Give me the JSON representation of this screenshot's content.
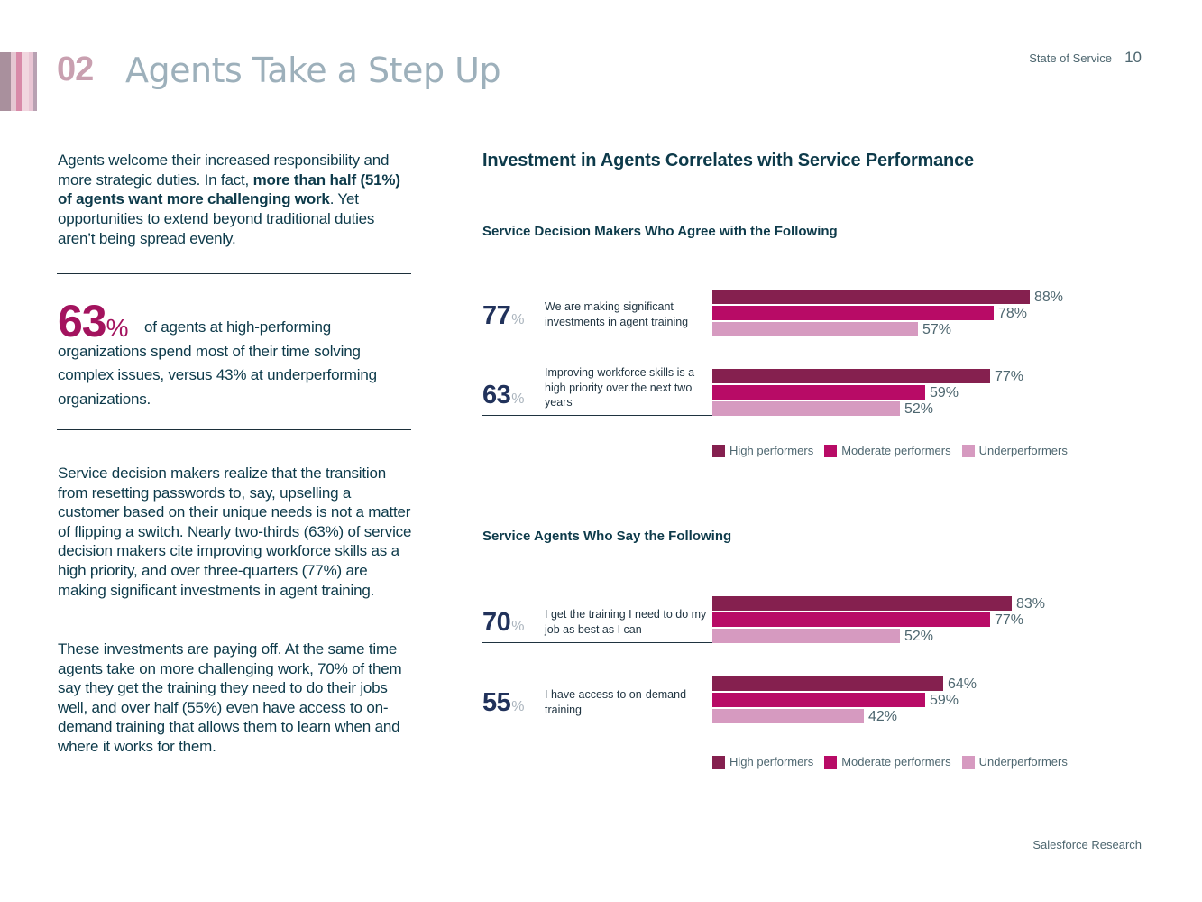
{
  "header": {
    "section_number": "02",
    "section_title": "Agents Take a Step Up",
    "running_head": "State of Service",
    "page_number": "10",
    "stripe_colors": [
      "#a9909d",
      "#e5c7d2",
      "#d88aa8",
      "#f1d6df",
      "#b8a1b2"
    ]
  },
  "left": {
    "intro_pre": "Agents welcome their increased responsibility and more strategic duties. In fact, ",
    "intro_bold": "more than half (51%) of agents want more challenging work",
    "intro_post": ". Yet opportunities to extend beyond traditional duties aren’t being spread evenly.",
    "stat_value": "63",
    "stat_pct": "%",
    "stat_text": "of agents at high-performing organizations spend most of their time solving complex issues, versus 43% at underperforming organizations.",
    "paragraph1": "Service decision makers realize that the transition from resetting passwords to, say, upselling a customer based on their unique needs is not a matter of flipping a switch. Nearly two-thirds (63%) of service decision makers cite improving workforce skills as a high priority, and over three-quarters (77%) are making significant investments in agent training.",
    "paragraph2": "These investments are paying off. At the same time agents take on more challenging work, 70% of them say they get the training they need to do their jobs well, and over half (55%) even have access to on-demand training that allows them to learn when and where it works for them."
  },
  "chart_data": [
    {
      "type": "bar",
      "orientation": "horizontal",
      "title": "Investment in Agents Correlates with Service Performance",
      "subtitle": "Service Decision Makers Who Agree with the Following",
      "categories": [
        "We are making significant investments in agent training",
        "Improving workforce skills is a high priority over the next two years"
      ],
      "overall": [
        "77",
        "63"
      ],
      "unit": "%",
      "series": [
        {
          "name": "High performers",
          "color": "#85204f",
          "values": [
            88,
            77
          ]
        },
        {
          "name": "Moderate performers",
          "color": "#b80b66",
          "values": [
            78,
            59
          ]
        },
        {
          "name": "Underperformers",
          "color": "#d69ac0",
          "values": [
            57,
            52
          ]
        }
      ],
      "xlim": [
        0,
        100
      ]
    },
    {
      "type": "bar",
      "orientation": "horizontal",
      "subtitle": "Service Agents Who Say the Following",
      "categories": [
        "I get the training I need to do my job as best as I can",
        "I have access to on-demand training"
      ],
      "overall": [
        "70",
        "55"
      ],
      "unit": "%",
      "series": [
        {
          "name": "High performers",
          "color": "#85204f",
          "values": [
            83,
            64
          ]
        },
        {
          "name": "Moderate performers",
          "color": "#b80b66",
          "values": [
            77,
            59
          ]
        },
        {
          "name": "Underperformers",
          "color": "#d69ac0",
          "values": [
            52,
            42
          ]
        }
      ],
      "xlim": [
        0,
        100
      ]
    }
  ],
  "footer": {
    "text": "Salesforce Research"
  }
}
